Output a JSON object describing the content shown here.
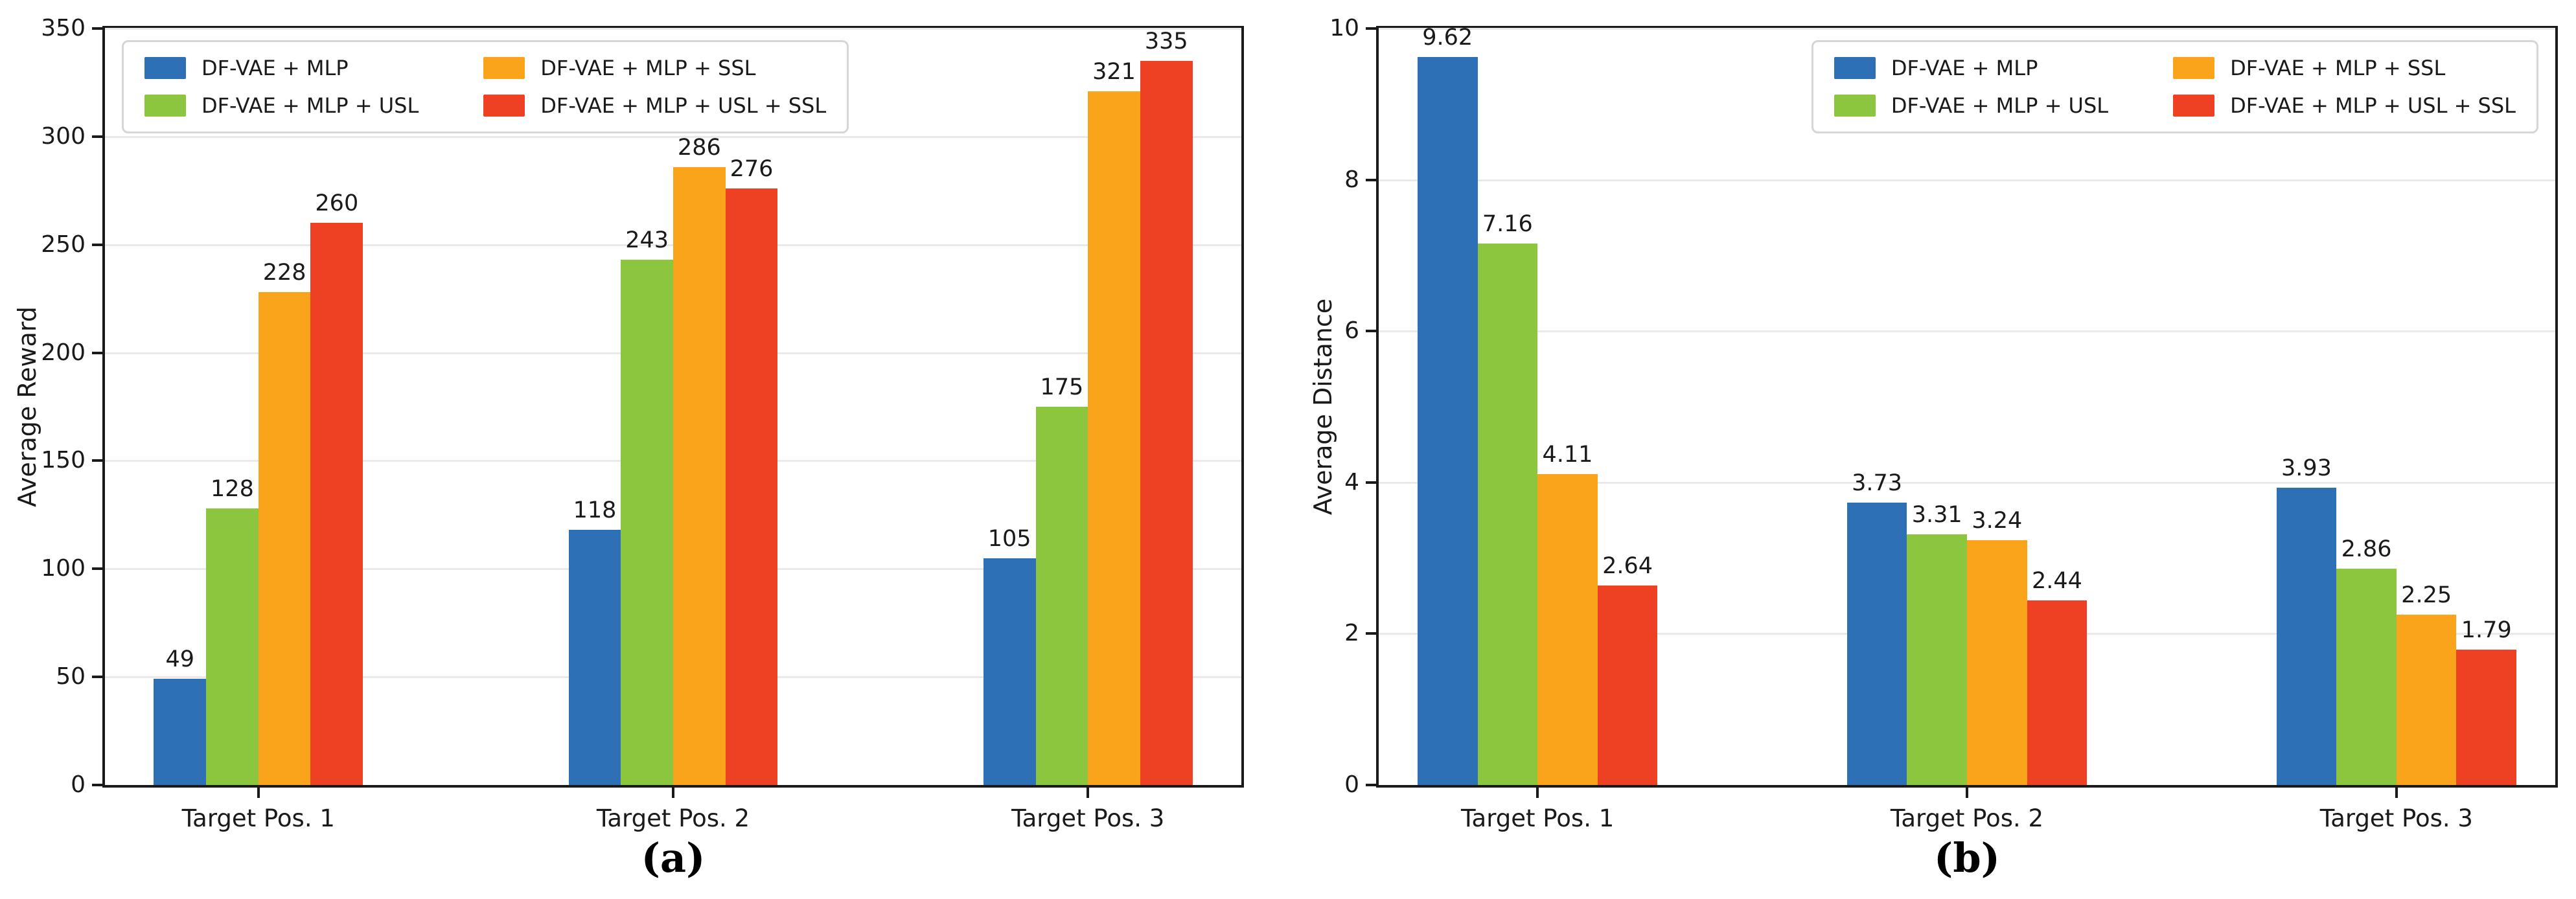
{
  "chart_data": [
    {
      "type": "bar",
      "panel_caption": "(a)",
      "ylabel": "Average Reward",
      "xlabel": "",
      "ylim": [
        0,
        350
      ],
      "yticks": [
        0,
        50,
        100,
        150,
        200,
        250,
        300,
        350
      ],
      "categories": [
        "Target Pos. 1",
        "Target Pos. 2",
        "Target Pos. 3"
      ],
      "grid": "horizontal",
      "legend_position": "upper-left",
      "series": [
        {
          "name": "DF-VAE + MLP",
          "color": "#2d70b5",
          "values": [
            49,
            118,
            105
          ],
          "labels": [
            "49",
            "118",
            "105"
          ]
        },
        {
          "name": "DF-VAE + MLP + USL",
          "color": "#8cc63f",
          "values": [
            128,
            243,
            175
          ],
          "labels": [
            "128",
            "243",
            "175"
          ]
        },
        {
          "name": "DF-VAE + MLP + SSL",
          "color": "#faa41b",
          "values": [
            228,
            286,
            321
          ],
          "labels": [
            "228",
            "286",
            "321"
          ]
        },
        {
          "name": "DF-VAE + MLP + USL + SSL",
          "color": "#ee4123",
          "values": [
            260,
            276,
            335
          ],
          "labels": [
            "260",
            "276",
            "335"
          ]
        }
      ]
    },
    {
      "type": "bar",
      "panel_caption": "(b)",
      "ylabel": "Average Distance",
      "xlabel": "",
      "ylim": [
        0,
        10
      ],
      "yticks": [
        0,
        2,
        4,
        6,
        8,
        10
      ],
      "categories": [
        "Target Pos. 1",
        "Target Pos. 2",
        "Target Pos. 3"
      ],
      "grid": "horizontal",
      "legend_position": "upper-right",
      "series": [
        {
          "name": "DF-VAE + MLP",
          "color": "#2d70b5",
          "values": [
            9.62,
            3.73,
            3.93
          ],
          "labels": [
            "9.62",
            "3.73",
            "3.93"
          ]
        },
        {
          "name": "DF-VAE + MLP + USL",
          "color": "#8cc63f",
          "values": [
            7.16,
            3.31,
            2.86
          ],
          "labels": [
            "7.16",
            "3.31",
            "2.86"
          ]
        },
        {
          "name": "DF-VAE + MLP + SSL",
          "color": "#faa41b",
          "values": [
            4.11,
            3.24,
            2.25
          ],
          "labels": [
            "4.11",
            "3.24",
            "2.25"
          ]
        },
        {
          "name": "DF-VAE + MLP + USL + SSL",
          "color": "#ee4123",
          "values": [
            2.64,
            2.44,
            1.79
          ],
          "labels": [
            "2.64",
            "2.44",
            "1.79"
          ]
        }
      ]
    }
  ]
}
